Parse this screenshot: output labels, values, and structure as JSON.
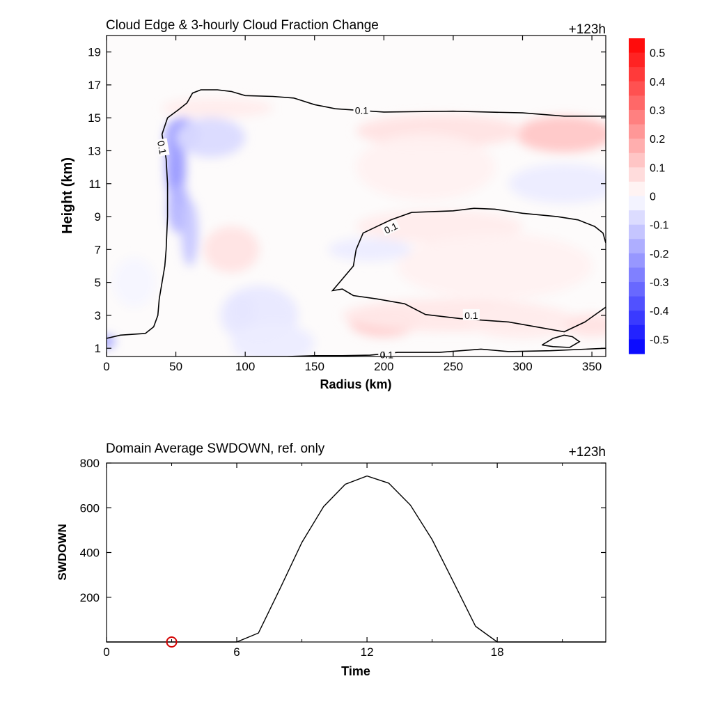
{
  "chart_data": [
    {
      "type": "heatmap",
      "title": "Cloud Edge & 3-hourly Cloud Fraction Change",
      "time_label": "+123h",
      "xlabel": "Radius (km)",
      "ylabel": "Height (km)",
      "xlim": [
        0,
        360
      ],
      "ylim": [
        0.5,
        20
      ],
      "x_ticks": [
        "0",
        "50",
        "100",
        "150",
        "200",
        "250",
        "300",
        "350"
      ],
      "y_ticks": [
        "1",
        "3",
        "5",
        "7",
        "9",
        "11",
        "13",
        "15",
        "17",
        "19"
      ],
      "colorbar": {
        "ticks": [
          "0.5",
          "0.4",
          "0.3",
          "0.2",
          "0.1",
          "0",
          "-0.1",
          "-0.2",
          "-0.3",
          "-0.4",
          "-0.5"
        ],
        "range": [
          -0.55,
          0.55
        ],
        "step": 0.05,
        "min_color": "#0000ff",
        "max_color": "#ff0000"
      },
      "contour_level": "0.1",
      "contour_labels": [
        "0.1",
        "0.1",
        "0.1",
        "0.1",
        "0.1"
      ],
      "contour_0p1": [
        [
          [
            0,
            1.6
          ],
          [
            10,
            1.8
          ],
          [
            28,
            1.9
          ],
          [
            34,
            2.3
          ],
          [
            37,
            3.0
          ],
          [
            38,
            4.0
          ],
          [
            40,
            5.0
          ],
          [
            42,
            6.0
          ],
          [
            43,
            7.0
          ],
          [
            44,
            9.0
          ],
          [
            44,
            11.0
          ],
          [
            43,
            12.5
          ],
          [
            40,
            14.0
          ],
          [
            44,
            15.0
          ],
          [
            52,
            15.5
          ],
          [
            58,
            15.9
          ],
          [
            62,
            16.5
          ],
          [
            68,
            16.7
          ],
          [
            80,
            16.7
          ],
          [
            90,
            16.6
          ],
          [
            100,
            16.35
          ],
          [
            120,
            16.3
          ],
          [
            135,
            16.2
          ],
          [
            150,
            15.8
          ],
          [
            165,
            15.55
          ],
          [
            200,
            15.35
          ],
          [
            250,
            15.4
          ],
          [
            300,
            15.3
          ],
          [
            330,
            15.1
          ],
          [
            360,
            15.1
          ]
        ],
        [
          [
            180,
            7.0
          ],
          [
            185,
            8.0
          ],
          [
            195,
            8.4
          ],
          [
            205,
            8.8
          ],
          [
            220,
            9.25
          ],
          [
            250,
            9.35
          ],
          [
            265,
            9.5
          ],
          [
            280,
            9.45
          ],
          [
            300,
            9.2
          ],
          [
            325,
            9.0
          ],
          [
            340,
            8.8
          ],
          [
            352,
            8.4
          ],
          [
            358,
            8.0
          ],
          [
            360,
            7.4
          ]
        ],
        [
          [
            180,
            7.0
          ],
          [
            178,
            6.0
          ],
          [
            170,
            5.2
          ],
          [
            163,
            4.5
          ],
          [
            170,
            4.6
          ],
          [
            178,
            4.2
          ],
          [
            195,
            4.0
          ],
          [
            215,
            3.7
          ],
          [
            230,
            3.05
          ],
          [
            255,
            2.8
          ],
          [
            290,
            2.6
          ],
          [
            330,
            2.0
          ],
          [
            345,
            2.6
          ],
          [
            360,
            3.5
          ]
        ],
        [
          [
            314,
            1.2
          ],
          [
            322,
            1.6
          ],
          [
            330,
            1.8
          ],
          [
            336,
            1.7
          ],
          [
            341,
            1.4
          ],
          [
            334,
            1.05
          ],
          [
            322,
            1.1
          ],
          [
            314,
            1.2
          ]
        ],
        [
          [
            100,
            0.5
          ],
          [
            130,
            0.5
          ],
          [
            150,
            0.55
          ],
          [
            170,
            0.55
          ],
          [
            190,
            0.58
          ],
          [
            210,
            0.75
          ],
          [
            240,
            0.75
          ],
          [
            270,
            0.95
          ],
          [
            290,
            0.8
          ],
          [
            320,
            0.85
          ],
          [
            360,
            1.0
          ]
        ]
      ],
      "blobs": [
        [
          55,
          14.0,
          12,
          1.0,
          -0.22
        ],
        [
          50,
          12.0,
          7,
          2.3,
          -0.22
        ],
        [
          52,
          9.5,
          8,
          1.5,
          -0.16
        ],
        [
          48,
          13.5,
          6,
          1.3,
          -0.2
        ],
        [
          75,
          13.8,
          25,
          1.2,
          -0.08
        ],
        [
          60,
          8.0,
          6,
          2.0,
          -0.12
        ],
        [
          0,
          1.4,
          6,
          0.4,
          -0.2
        ],
        [
          98,
          3.3,
          10,
          1.0,
          -0.13
        ],
        [
          110,
          3.0,
          28,
          1.8,
          -0.05
        ],
        [
          120,
          1.3,
          30,
          1.2,
          -0.04
        ],
        [
          330,
          14.0,
          35,
          1.1,
          0.12
        ],
        [
          240,
          14.2,
          60,
          1.0,
          0.06
        ],
        [
          200,
          2.6,
          25,
          0.9,
          0.11
        ],
        [
          250,
          3.0,
          80,
          1.0,
          0.05
        ],
        [
          300,
          2.6,
          40,
          1.0,
          0.04
        ],
        [
          90,
          7.0,
          20,
          1.4,
          0.06
        ],
        [
          350,
          2.4,
          20,
          0.7,
          0.06
        ],
        [
          80,
          15.6,
          40,
          0.6,
          0.04
        ],
        [
          240,
          8.4,
          60,
          1.0,
          0.04
        ],
        [
          280,
          6.0,
          70,
          2.0,
          0.03
        ],
        [
          230,
          12.0,
          50,
          2.0,
          0.03
        ],
        [
          330,
          11.0,
          40,
          1.2,
          -0.04
        ],
        [
          190,
          7.0,
          30,
          0.7,
          -0.04
        ],
        [
          20,
          5.0,
          15,
          1.5,
          -0.02
        ]
      ]
    },
    {
      "type": "line",
      "title": "Domain Average SWDOWN, ref. only",
      "time_label": "+123h",
      "xlabel": "Time",
      "ylabel": "SWDOWN",
      "xlim": [
        0,
        23
      ],
      "ylim": [
        0,
        800
      ],
      "x_ticks": [
        "0",
        "6",
        "12",
        "18"
      ],
      "y_ticks": [
        "200",
        "400",
        "600",
        "800"
      ],
      "x": [
        0,
        1,
        2,
        3,
        4,
        5,
        6,
        7,
        8,
        9,
        10,
        11,
        12,
        13,
        14,
        15,
        16,
        17,
        18,
        19,
        20,
        21,
        22,
        23
      ],
      "y": [
        0,
        0,
        0,
        0,
        0,
        0,
        0,
        40,
        240,
        445,
        605,
        705,
        742,
        710,
        612,
        458,
        265,
        70,
        0,
        0,
        0,
        0,
        0,
        0
      ],
      "marker": {
        "x": 3,
        "y": 0,
        "color": "#d40000"
      }
    }
  ]
}
